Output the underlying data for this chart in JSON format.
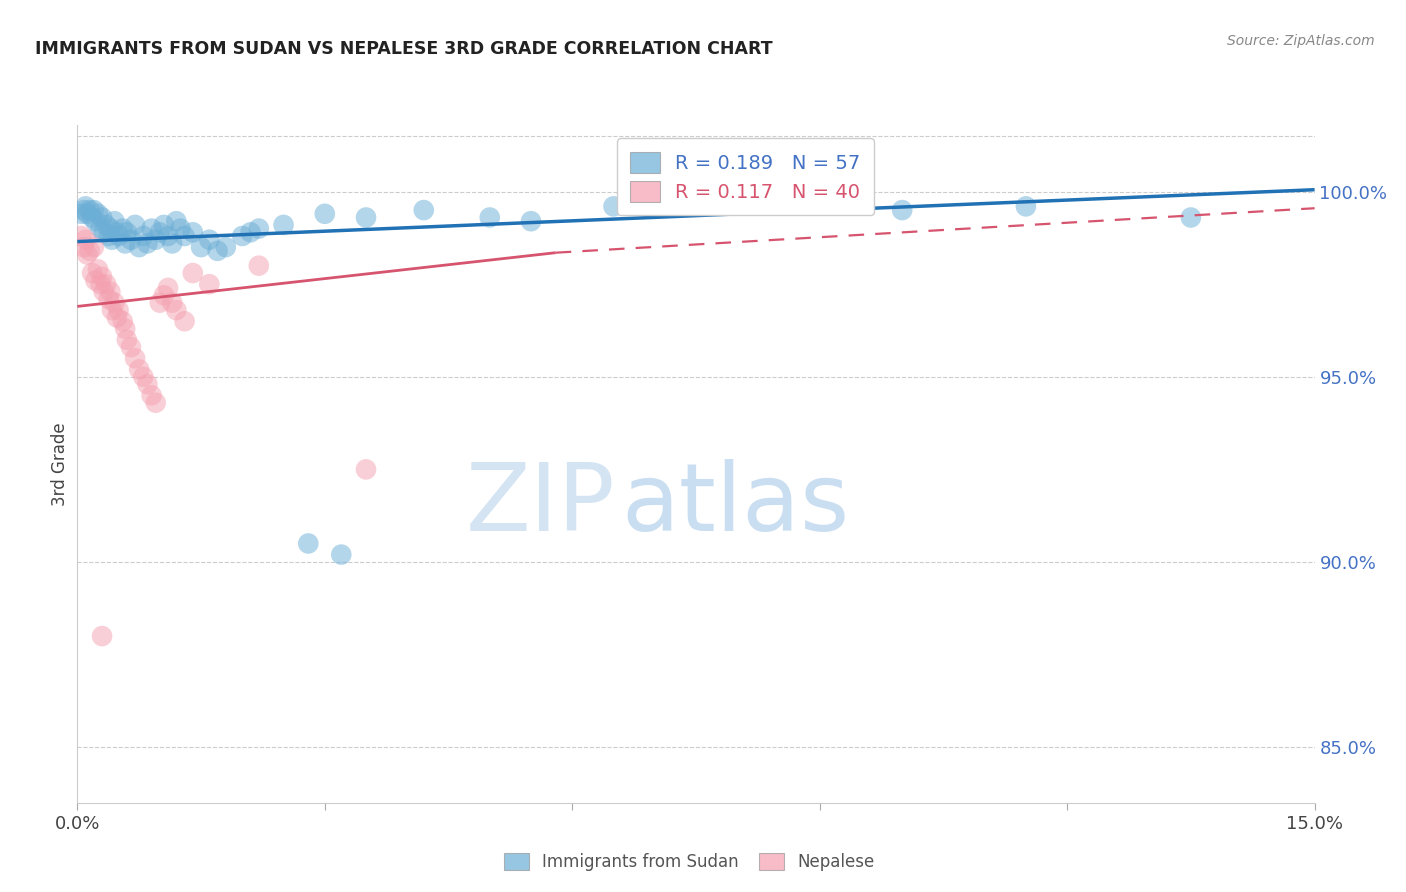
{
  "title": "IMMIGRANTS FROM SUDAN VS NEPALESE 3RD GRADE CORRELATION CHART",
  "source": "Source: ZipAtlas.com",
  "ylabel": "3rd Grade",
  "right_yticks": [
    85.0,
    90.0,
    95.0,
    100.0
  ],
  "xmin": 0.0,
  "xmax": 15.0,
  "ymin": 83.5,
  "ymax": 101.8,
  "legend_r1": "0.189",
  "legend_n1": "57",
  "legend_r2": "0.117",
  "legend_n2": "40",
  "blue_color": "#6BAED6",
  "pink_color": "#F4A0B0",
  "line_blue": "#2171B5",
  "line_pink": "#D6546E",
  "watermark_zip": "ZIP",
  "watermark_atlas": "atlas",
  "blue_trend": [
    0.0,
    15.0,
    98.65,
    100.05
  ],
  "pink_solid": [
    0.0,
    5.8,
    96.9,
    98.35
  ],
  "pink_dashed": [
    5.8,
    15.0,
    98.35,
    99.55
  ],
  "blue_points": [
    [
      0.05,
      99.4
    ],
    [
      0.08,
      99.5
    ],
    [
      0.1,
      99.6
    ],
    [
      0.12,
      99.4
    ],
    [
      0.15,
      99.5
    ],
    [
      0.18,
      99.3
    ],
    [
      0.2,
      99.5
    ],
    [
      0.22,
      99.2
    ],
    [
      0.25,
      99.4
    ],
    [
      0.28,
      99.0
    ],
    [
      0.3,
      99.3
    ],
    [
      0.32,
      98.9
    ],
    [
      0.35,
      99.1
    ],
    [
      0.38,
      98.8
    ],
    [
      0.4,
      99.0
    ],
    [
      0.42,
      98.7
    ],
    [
      0.45,
      99.2
    ],
    [
      0.48,
      98.9
    ],
    [
      0.5,
      98.8
    ],
    [
      0.55,
      99.0
    ],
    [
      0.58,
      98.6
    ],
    [
      0.6,
      98.9
    ],
    [
      0.65,
      98.7
    ],
    [
      0.7,
      99.1
    ],
    [
      0.75,
      98.5
    ],
    [
      0.8,
      98.8
    ],
    [
      0.85,
      98.6
    ],
    [
      0.9,
      99.0
    ],
    [
      0.95,
      98.7
    ],
    [
      1.0,
      98.9
    ],
    [
      1.05,
      99.1
    ],
    [
      1.1,
      98.8
    ],
    [
      1.15,
      98.6
    ],
    [
      1.2,
      99.2
    ],
    [
      1.25,
      99.0
    ],
    [
      1.3,
      98.8
    ],
    [
      1.4,
      98.9
    ],
    [
      1.5,
      98.5
    ],
    [
      1.6,
      98.7
    ],
    [
      1.7,
      98.4
    ],
    [
      1.8,
      98.5
    ],
    [
      2.0,
      98.8
    ],
    [
      2.1,
      98.9
    ],
    [
      2.2,
      99.0
    ],
    [
      2.5,
      99.1
    ],
    [
      3.0,
      99.4
    ],
    [
      3.5,
      99.3
    ],
    [
      4.2,
      99.5
    ],
    [
      5.0,
      99.3
    ],
    [
      5.5,
      99.2
    ],
    [
      6.5,
      99.6
    ],
    [
      8.5,
      99.7
    ],
    [
      10.0,
      99.5
    ],
    [
      11.5,
      99.6
    ],
    [
      13.5,
      99.3
    ],
    [
      2.8,
      90.5
    ],
    [
      3.2,
      90.2
    ]
  ],
  "pink_points": [
    [
      0.05,
      98.8
    ],
    [
      0.08,
      98.5
    ],
    [
      0.1,
      98.7
    ],
    [
      0.12,
      98.3
    ],
    [
      0.15,
      98.4
    ],
    [
      0.18,
      97.8
    ],
    [
      0.2,
      98.5
    ],
    [
      0.22,
      97.6
    ],
    [
      0.25,
      97.9
    ],
    [
      0.28,
      97.5
    ],
    [
      0.3,
      97.7
    ],
    [
      0.32,
      97.3
    ],
    [
      0.35,
      97.5
    ],
    [
      0.38,
      97.1
    ],
    [
      0.4,
      97.3
    ],
    [
      0.42,
      96.8
    ],
    [
      0.45,
      97.0
    ],
    [
      0.48,
      96.6
    ],
    [
      0.5,
      96.8
    ],
    [
      0.55,
      96.5
    ],
    [
      0.58,
      96.3
    ],
    [
      0.6,
      96.0
    ],
    [
      0.65,
      95.8
    ],
    [
      0.7,
      95.5
    ],
    [
      0.75,
      95.2
    ],
    [
      0.8,
      95.0
    ],
    [
      0.85,
      94.8
    ],
    [
      0.9,
      94.5
    ],
    [
      0.95,
      94.3
    ],
    [
      1.0,
      97.0
    ],
    [
      1.05,
      97.2
    ],
    [
      1.1,
      97.4
    ],
    [
      1.15,
      97.0
    ],
    [
      1.2,
      96.8
    ],
    [
      1.3,
      96.5
    ],
    [
      1.4,
      97.8
    ],
    [
      1.6,
      97.5
    ],
    [
      2.2,
      98.0
    ],
    [
      3.5,
      92.5
    ],
    [
      0.3,
      88.0
    ]
  ]
}
